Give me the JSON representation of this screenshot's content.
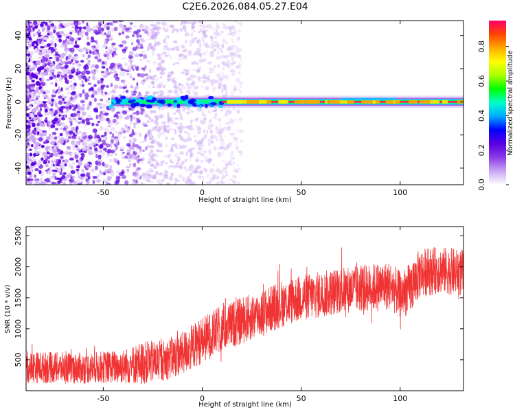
{
  "title": "C2E6.2026.084.05.27.E04",
  "chart_data": [
    {
      "type": "heatmap",
      "xlabel": "Height of straight line (km)",
      "ylabel": "Frequency (Hz)",
      "xlim": [
        -89,
        132
      ],
      "ylim": [
        -50,
        49
      ],
      "xticks": [
        -50,
        0,
        50,
        100
      ],
      "yticks": [
        -40,
        -20,
        0,
        20,
        40
      ],
      "colorbar": {
        "label": "Normalized spectral amplitude",
        "range": [
          0,
          0.95
        ],
        "ticks": [
          "0.0",
          "0.2",
          "0.4",
          "0.6",
          "0.8"
        ],
        "tick_values": [
          0,
          0.2,
          0.4,
          0.6,
          0.8
        ],
        "colors": [
          "#ffffff",
          "#c9a6f2",
          "#8a3be6",
          "#5a00e0",
          "#0000ff",
          "#00aaff",
          "#00ffcc",
          "#00ff00",
          "#aaff00",
          "#ffff00",
          "#ffaa00",
          "#ff4400",
          "#ff0066"
        ]
      },
      "ridge": {
        "frequency_hz": 0,
        "start_km": -46,
        "end_km": 132
      },
      "noise_region": {
        "start_km": -89,
        "end_km": 8
      }
    },
    {
      "type": "line",
      "xlabel": "Height of straight line (km)",
      "ylabel": "SNR (10 * v/v)",
      "xlim": [
        -89,
        132
      ],
      "ylim": [
        0,
        2650
      ],
      "xticks": [
        -50,
        0,
        50,
        100
      ],
      "yticks": [
        500,
        1000,
        1500,
        2000,
        2500
      ],
      "color": "#f03434",
      "envelope": {
        "x": [
          -89,
          -60,
          -50,
          -40,
          -30,
          -20,
          -10,
          0,
          10,
          20,
          30,
          40,
          50,
          60,
          70,
          80,
          90,
          95,
          100,
          105,
          110,
          120,
          132
        ],
        "mean": [
          380,
          360,
          380,
          390,
          450,
          480,
          600,
          820,
          1000,
          1130,
          1250,
          1400,
          1500,
          1550,
          1620,
          1650,
          1680,
          1700,
          1550,
          1650,
          1900,
          1950,
          1900
        ],
        "spread": [
          260,
          250,
          260,
          280,
          350,
          330,
          350,
          380,
          380,
          380,
          380,
          380,
          380,
          380,
          380,
          380,
          400,
          400,
          380,
          420,
          400,
          380,
          380
        ]
      }
    }
  ]
}
